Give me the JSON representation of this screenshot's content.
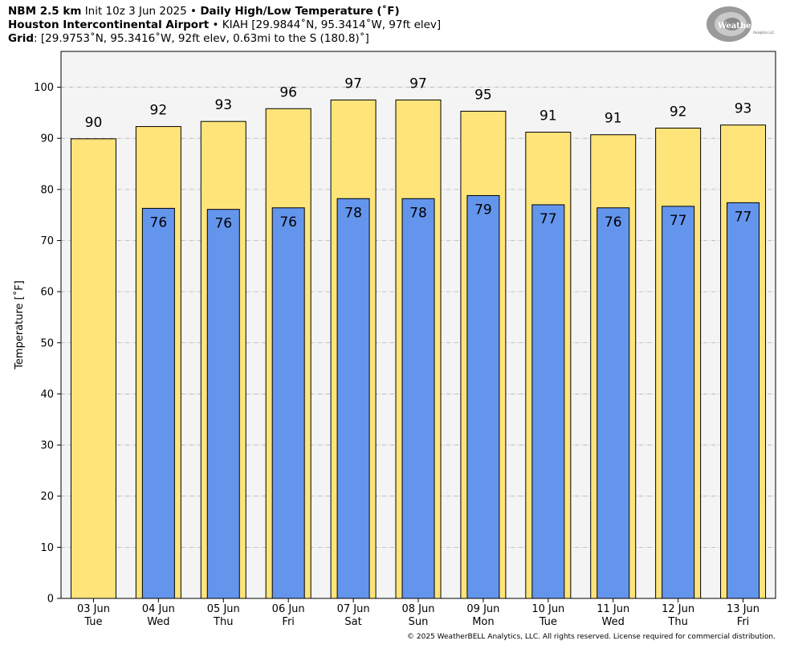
{
  "header": {
    "line1": {
      "model": "NBM 2.5 km",
      "init": "Init 10z 3 Jun 2025",
      "sep": "•",
      "product": "Daily High/Low Temperature (˚F)"
    },
    "line2": {
      "station": "Houston Intercontinental Airport",
      "sep": "•",
      "details": "KIAH [29.9844˚N, 95.3414˚W, 97ft elev]"
    },
    "line3": {
      "label": "Grid",
      "details": ": [29.9753˚N, 95.3416˚W, 92ft elev, 0.63mi to the S (180.8)˚]"
    }
  },
  "logo": {
    "text_main": "WeatherBELL",
    "text_sub": "Analytics LLC"
  },
  "copyright": "© 2025 WeatherBELL Analytics, LLC. All rights reserved. License required for commercial distribution.",
  "colors": {
    "high": "#FFE47A",
    "low": "#6495ED",
    "plot_bg": "#F4F4F4",
    "grid": "#B0B0B0"
  },
  "chart_data": {
    "type": "bar",
    "ylabel": "Temperature [˚F]",
    "ylim": [
      0,
      107
    ],
    "yticks": [
      0,
      10,
      20,
      30,
      40,
      50,
      60,
      70,
      80,
      90,
      100
    ],
    "grid": "horizontal dash-dot",
    "categories": [
      {
        "date": "03 Jun",
        "day": "Tue"
      },
      {
        "date": "04 Jun",
        "day": "Wed"
      },
      {
        "date": "05 Jun",
        "day": "Thu"
      },
      {
        "date": "06 Jun",
        "day": "Fri"
      },
      {
        "date": "07 Jun",
        "day": "Sat"
      },
      {
        "date": "08 Jun",
        "day": "Sun"
      },
      {
        "date": "09 Jun",
        "day": "Mon"
      },
      {
        "date": "10 Jun",
        "day": "Tue"
      },
      {
        "date": "11 Jun",
        "day": "Wed"
      },
      {
        "date": "12 Jun",
        "day": "Thu"
      },
      {
        "date": "13 Jun",
        "day": "Fri"
      }
    ],
    "series": [
      {
        "values": [
          89.9,
          92.3,
          93.3,
          95.8,
          97.5,
          97.5,
          95.3,
          91.2,
          90.7,
          92.0,
          92.6
        ],
        "labels": [
          "90",
          "92",
          "93",
          "96",
          "97",
          "97",
          "95",
          "91",
          "91",
          "92",
          "93"
        ]
      },
      {
        "values": [
          null,
          76.3,
          76.1,
          76.4,
          78.2,
          78.2,
          78.8,
          77.0,
          76.4,
          76.7,
          77.4
        ],
        "labels": [
          null,
          "76",
          "76",
          "76",
          "78",
          "78",
          "79",
          "77",
          "76",
          "77",
          "77"
        ]
      }
    ]
  }
}
